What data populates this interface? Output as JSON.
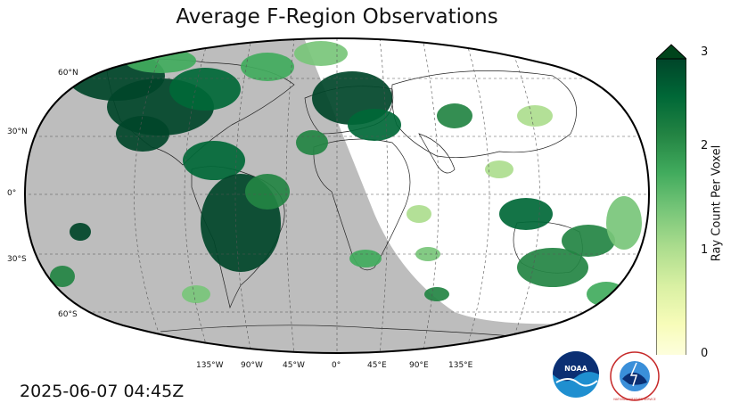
{
  "title": "Average F-Region Observations",
  "timestamp": "2025-06-07 04:45Z",
  "colorbar": {
    "label": "Ray Count Per Voxel",
    "ticks": [
      "0",
      "1",
      "2",
      "3"
    ],
    "min": 0,
    "max": 3,
    "extend": "max",
    "colors": [
      "#ffffe5",
      "#f7fcb9",
      "#d9f0a3",
      "#addd8e",
      "#78c679",
      "#41ab5d",
      "#238443",
      "#006837",
      "#004529"
    ]
  },
  "map": {
    "projection": "Robinson",
    "night_shade_color": "#bdbdbd",
    "graticule": {
      "lat_labels": [
        "60°N",
        "30°N",
        "0°",
        "30°S",
        "60°S"
      ],
      "lon_labels": [
        "135°W",
        "90°W",
        "45°W",
        "0°",
        "45°E",
        "90°E",
        "135°E"
      ]
    }
  },
  "logos": [
    {
      "icon": "noaa-logo",
      "text": "NOAA"
    },
    {
      "icon": "national-weather-service-logo",
      "text": "NATIONAL WEATHER SERVICE"
    }
  ]
}
